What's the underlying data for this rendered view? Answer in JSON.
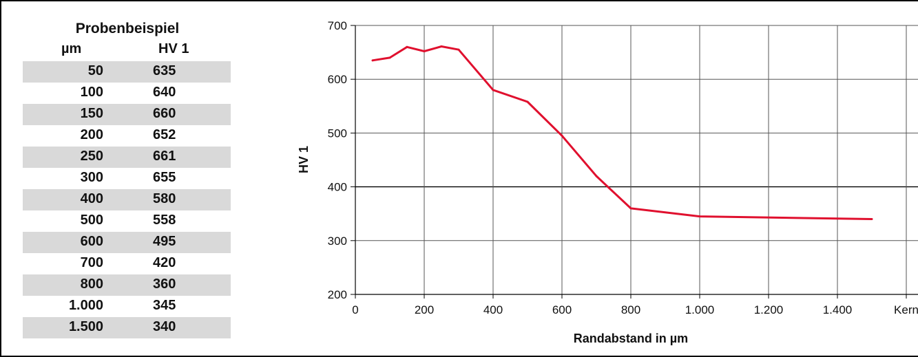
{
  "table": {
    "title": "Probenbeispiel",
    "col1_header": "µm",
    "col2_header": "HV 1",
    "rows": [
      {
        "um": "50",
        "hv": "635"
      },
      {
        "um": "100",
        "hv": "640"
      },
      {
        "um": "150",
        "hv": "660"
      },
      {
        "um": "200",
        "hv": "652"
      },
      {
        "um": "250",
        "hv": "661"
      },
      {
        "um": "300",
        "hv": "655"
      },
      {
        "um": "400",
        "hv": "580"
      },
      {
        "um": "500",
        "hv": "558"
      },
      {
        "um": "600",
        "hv": "495"
      },
      {
        "um": "700",
        "hv": "420"
      },
      {
        "um": "800",
        "hv": "360"
      },
      {
        "um": "1.000",
        "hv": "345"
      },
      {
        "um": "1.500",
        "hv": "340"
      }
    ]
  },
  "chart_data": {
    "type": "line",
    "xlabel": "Randabstand in µm",
    "ylabel": "HV 1",
    "xlim": [
      0,
      1600
    ],
    "ylim": [
      200,
      700
    ],
    "x_ticks": [
      0,
      200,
      400,
      600,
      800,
      1000,
      1200,
      1400,
      1600
    ],
    "x_tick_labels": [
      "0",
      "200",
      "400",
      "600",
      "800",
      "1.000",
      "1.200",
      "1.400",
      "Kern"
    ],
    "y_ticks": [
      200,
      300,
      400,
      500,
      600,
      700
    ],
    "y_tick_labels": [
      "200",
      "300",
      "400",
      "500",
      "600",
      "700"
    ],
    "grid": true,
    "series": [
      {
        "color": "#e0102e",
        "x": [
          50,
          100,
          150,
          200,
          250,
          300,
          400,
          500,
          600,
          700,
          800,
          1000,
          1500
        ],
        "y": [
          635,
          640,
          660,
          652,
          661,
          655,
          580,
          558,
          495,
          420,
          360,
          345,
          340
        ]
      }
    ]
  }
}
